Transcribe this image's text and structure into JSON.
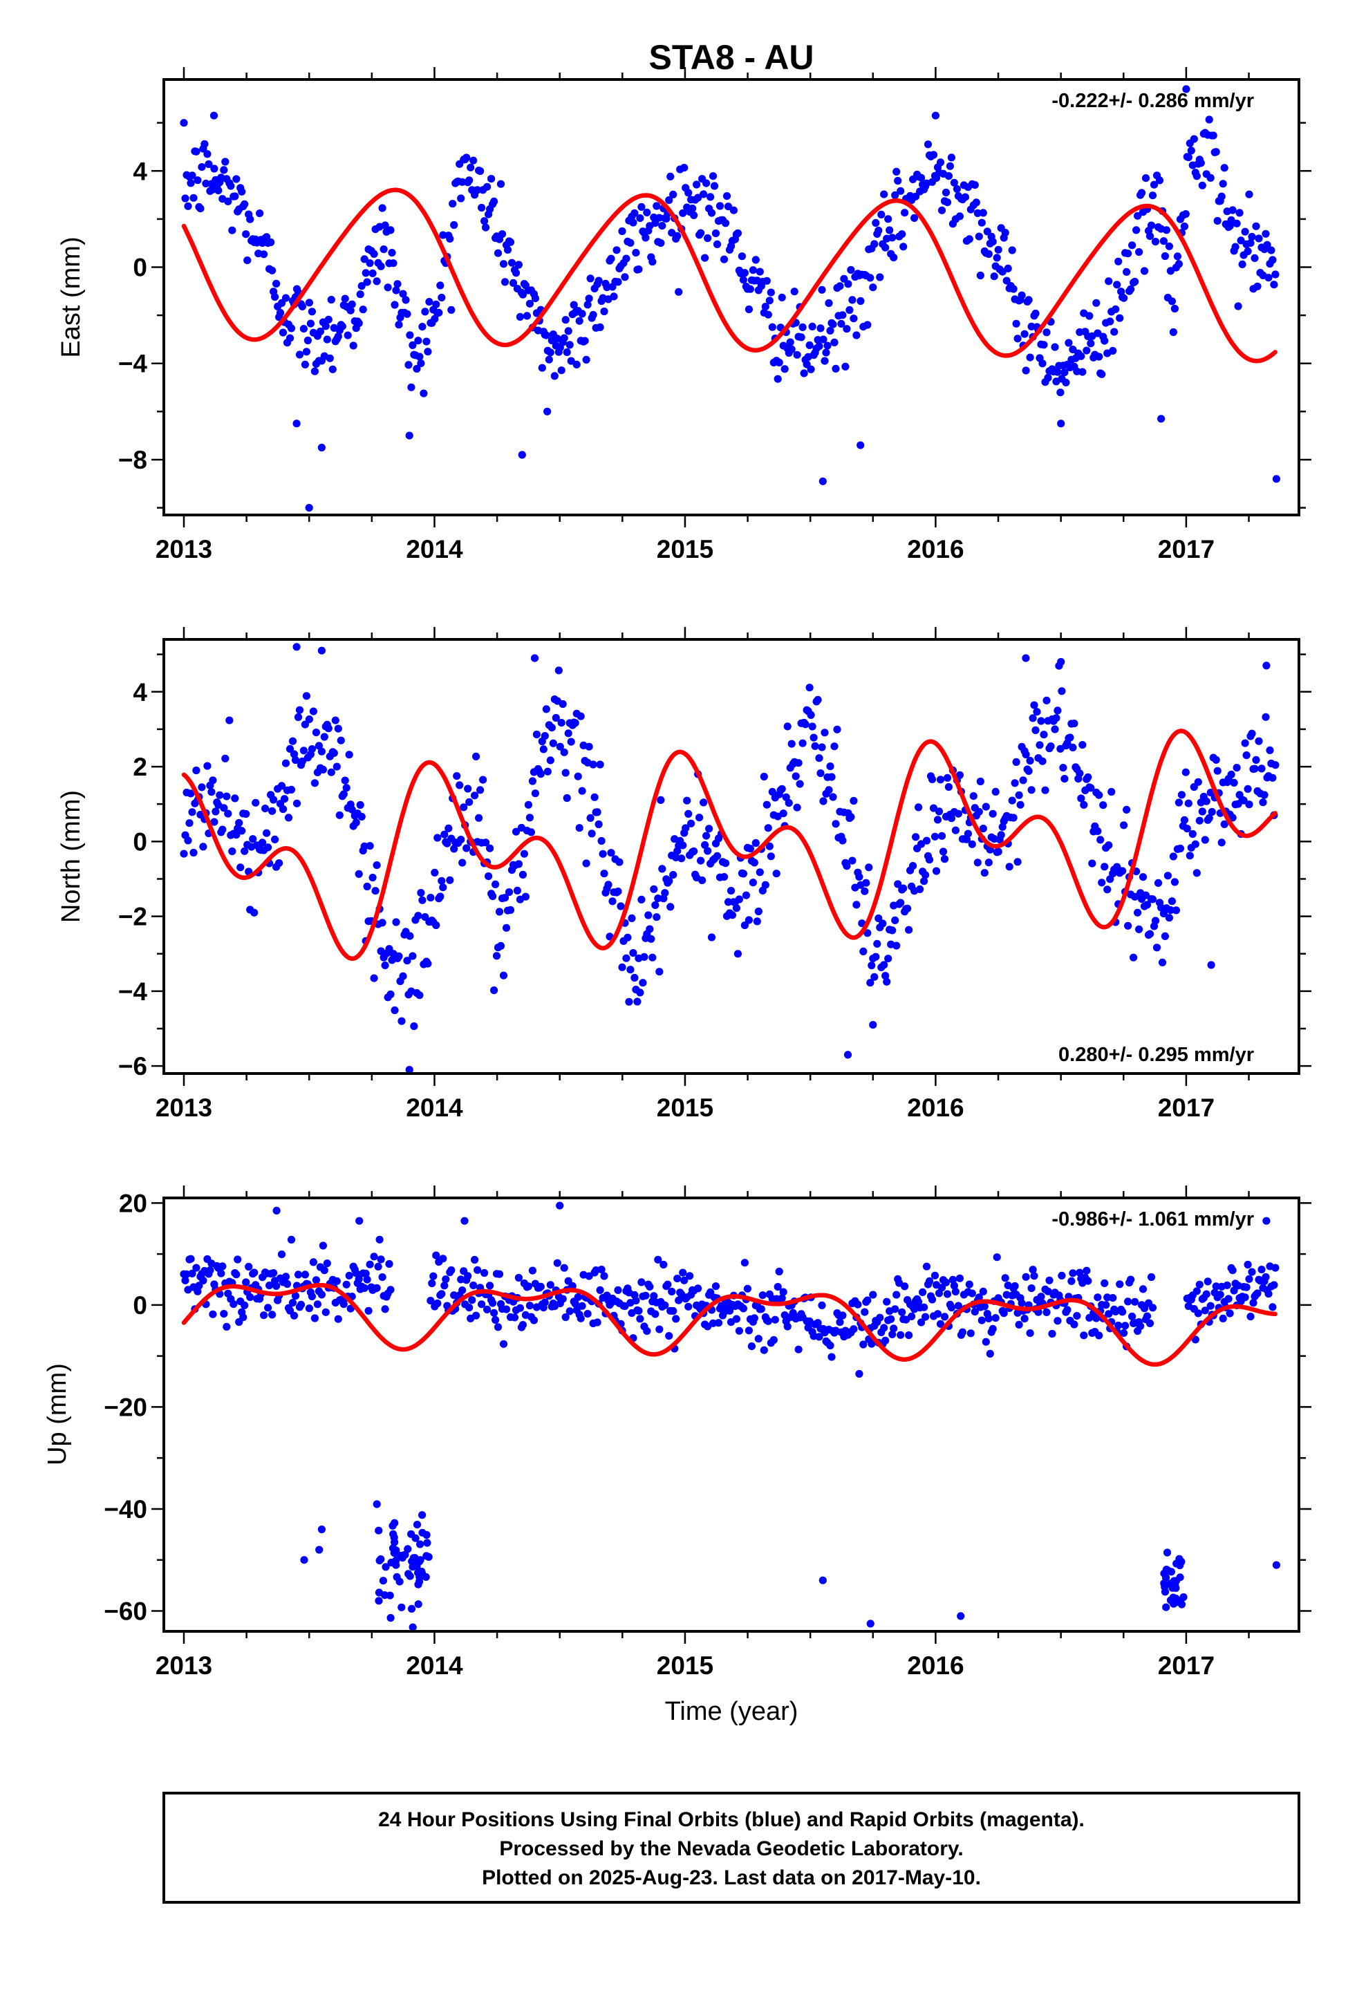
{
  "title": "STA8 - AU",
  "colors": {
    "points": "#0000ff",
    "fit": "#ff0000",
    "frame": "#000000"
  },
  "x_label": "Time (year)",
  "footer": {
    "line1": "24 Hour Positions Using Final Orbits (blue) and Rapid Orbits (magenta).",
    "line2": "Processed by the Nevada Geodetic Laboratory.",
    "line3": "Plotted on 2025-Aug-23. Last data on 2017-May-10."
  },
  "chart_data": [
    {
      "type": "scatter",
      "ylabel": "East (mm)",
      "xlim": [
        2012.92,
        2017.45
      ],
      "ylim": [
        -10.3,
        7.8
      ],
      "x_ticks": [
        2013,
        2014,
        2015,
        2016,
        2017
      ],
      "y_ticks": [
        -8,
        -4,
        0,
        4
      ],
      "grid": false,
      "rate_text": "-0.222+/- 0.286 mm/yr",
      "rate_position": "top-right",
      "points": {
        "x_start": 2013.0,
        "x_end": 2017.36,
        "step": 0.0055,
        "noise": 0.9,
        "anchors": [
          [
            2013.0,
            3.5
          ],
          [
            2013.1,
            3.8
          ],
          [
            2013.2,
            3.0
          ],
          [
            2013.3,
            1.0
          ],
          [
            2013.4,
            -1.5
          ],
          [
            2013.5,
            -3.0
          ],
          [
            2013.6,
            -2.5
          ],
          [
            2013.7,
            -1.5
          ],
          [
            2013.8,
            1.5
          ],
          [
            2013.9,
            -3.5
          ],
          [
            2014.0,
            -2.5
          ],
          [
            2014.1,
            4.0
          ],
          [
            2014.2,
            3.0
          ],
          [
            2014.3,
            0.5
          ],
          [
            2014.4,
            -2.5
          ],
          [
            2014.5,
            -3.5
          ],
          [
            2014.6,
            -2.0
          ],
          [
            2014.7,
            -0.5
          ],
          [
            2014.8,
            1.0
          ],
          [
            2014.9,
            2.0
          ],
          [
            2015.0,
            3.0
          ],
          [
            2015.1,
            2.5
          ],
          [
            2015.2,
            1.0
          ],
          [
            2015.3,
            -1.5
          ],
          [
            2015.4,
            -3.0
          ],
          [
            2015.5,
            -3.5
          ],
          [
            2015.6,
            -2.5
          ],
          [
            2015.7,
            -1.0
          ],
          [
            2015.8,
            1.0
          ],
          [
            2015.9,
            3.0
          ],
          [
            2016.0,
            4.0
          ],
          [
            2016.1,
            3.5
          ],
          [
            2016.2,
            1.5
          ],
          [
            2016.3,
            -1.0
          ],
          [
            2016.4,
            -3.0
          ],
          [
            2016.5,
            -4.0
          ],
          [
            2016.6,
            -3.5
          ],
          [
            2016.7,
            -2.0
          ],
          [
            2016.8,
            1.0
          ],
          [
            2016.9,
            2.5
          ],
          [
            2016.95,
            -2.0
          ],
          [
            2017.0,
            4.0
          ],
          [
            2017.1,
            4.5
          ],
          [
            2017.2,
            1.0
          ],
          [
            2017.3,
            0.5
          ],
          [
            2017.36,
            -0.5
          ]
        ],
        "outliers": [
          [
            2013.5,
            -10.0
          ],
          [
            2013.45,
            -6.5
          ],
          [
            2013.55,
            -7.5
          ],
          [
            2013.9,
            -7.0
          ],
          [
            2014.35,
            -7.8
          ],
          [
            2014.45,
            -6.0
          ],
          [
            2015.55,
            -8.9
          ],
          [
            2015.7,
            -7.4
          ],
          [
            2016.5,
            -6.5
          ],
          [
            2016.9,
            -6.3
          ],
          [
            2017.36,
            -8.8
          ],
          [
            2013.12,
            6.3
          ],
          [
            2017.0,
            7.4
          ],
          [
            2016.0,
            6.3
          ]
        ]
      },
      "fit": {
        "offset": -0.2,
        "rate": -0.222,
        "epoch": 2015.18,
        "harmonics": [
          [
            1.0,
            3.1,
            -0.19
          ],
          [
            2.0,
            0.35,
            0.45
          ]
        ]
      }
    },
    {
      "type": "scatter",
      "ylabel": "North (mm)",
      "xlim": [
        2012.92,
        2017.45
      ],
      "ylim": [
        -6.2,
        5.4
      ],
      "x_ticks": [
        2013,
        2014,
        2015,
        2016,
        2017
      ],
      "y_ticks": [
        -6,
        -4,
        -2,
        0,
        2,
        4
      ],
      "grid": false,
      "rate_text": "0.280+/- 0.295 mm/yr",
      "rate_position": "bottom-right",
      "points": {
        "x_start": 2013.0,
        "x_end": 2017.36,
        "step": 0.0055,
        "noise": 0.75,
        "anchors": [
          [
            2013.0,
            0.8
          ],
          [
            2013.1,
            1.0
          ],
          [
            2013.2,
            0.5
          ],
          [
            2013.3,
            -0.3
          ],
          [
            2013.4,
            1.0
          ],
          [
            2013.5,
            3.0
          ],
          [
            2013.6,
            2.5
          ],
          [
            2013.7,
            0.0
          ],
          [
            2013.8,
            -3.0
          ],
          [
            2013.9,
            -3.8
          ],
          [
            2014.0,
            -1.5
          ],
          [
            2014.1,
            0.8
          ],
          [
            2014.2,
            0.5
          ],
          [
            2014.25,
            -2.5
          ],
          [
            2014.3,
            -2.0
          ],
          [
            2014.4,
            1.0
          ],
          [
            2014.5,
            3.0
          ],
          [
            2014.6,
            2.0
          ],
          [
            2014.7,
            -1.0
          ],
          [
            2014.8,
            -3.5
          ],
          [
            2014.9,
            -2.0
          ],
          [
            2015.0,
            0.5
          ],
          [
            2015.1,
            -0.5
          ],
          [
            2015.2,
            -1.5
          ],
          [
            2015.3,
            -1.0
          ],
          [
            2015.4,
            1.5
          ],
          [
            2015.5,
            3.0
          ],
          [
            2015.6,
            1.5
          ],
          [
            2015.7,
            -1.5
          ],
          [
            2015.8,
            -3.0
          ],
          [
            2015.9,
            -1.0
          ],
          [
            2016.0,
            0.5
          ],
          [
            2016.1,
            0.5
          ],
          [
            2016.2,
            0.0
          ],
          [
            2016.3,
            0.5
          ],
          [
            2016.4,
            2.5
          ],
          [
            2016.5,
            3.0
          ],
          [
            2016.6,
            1.5
          ],
          [
            2016.7,
            -1.0
          ],
          [
            2016.8,
            -1.5
          ],
          [
            2016.9,
            -2.2
          ],
          [
            2017.0,
            0.5
          ],
          [
            2017.1,
            1.0
          ],
          [
            2017.2,
            1.5
          ],
          [
            2017.3,
            2.0
          ],
          [
            2017.36,
            1.5
          ]
        ],
        "outliers": [
          [
            2013.45,
            5.2
          ],
          [
            2013.55,
            5.1
          ],
          [
            2014.4,
            4.9
          ],
          [
            2013.9,
            -6.1
          ],
          [
            2015.65,
            -5.7
          ],
          [
            2015.75,
            -4.9
          ],
          [
            2016.36,
            4.9
          ],
          [
            2016.5,
            4.8
          ],
          [
            2017.32,
            4.7
          ],
          [
            2017.1,
            -3.3
          ]
        ]
      },
      "fit": {
        "offset": -0.1,
        "rate": 0.28,
        "epoch": 2015.18,
        "harmonics": [
          [
            1.0,
            1.6,
            0.08
          ],
          [
            2.0,
            1.35,
            -0.05
          ]
        ]
      }
    },
    {
      "type": "scatter",
      "ylabel": "Up (mm)",
      "xlim": [
        2012.92,
        2017.45
      ],
      "ylim": [
        -64,
        21
      ],
      "x_ticks": [
        2013,
        2014,
        2015,
        2016,
        2017
      ],
      "y_ticks": [
        -60,
        -40,
        -20,
        0,
        20
      ],
      "grid": false,
      "rate_text": "-0.986+/- 1.061 mm/yr",
      "rate_position": "top-right",
      "points": {
        "x_start": 2013.0,
        "x_end": 2017.36,
        "step": 0.0055,
        "noise": 3.2,
        "gaps": [
          [
            2013.83,
            2013.98
          ],
          [
            2016.87,
            2017.0
          ]
        ],
        "anchors": [
          [
            2013.0,
            3.0
          ],
          [
            2013.3,
            3.0
          ],
          [
            2013.6,
            3.5
          ],
          [
            2013.8,
            5.0
          ],
          [
            2014.0,
            5.0
          ],
          [
            2014.2,
            1.5
          ],
          [
            2014.5,
            2.0
          ],
          [
            2014.8,
            0.5
          ],
          [
            2015.0,
            1.0
          ],
          [
            2015.2,
            -1.0
          ],
          [
            2015.5,
            -2.5
          ],
          [
            2015.7,
            -5.0
          ],
          [
            2015.9,
            0.0
          ],
          [
            2016.0,
            2.0
          ],
          [
            2016.2,
            0.0
          ],
          [
            2016.4,
            2.0
          ],
          [
            2016.6,
            0.0
          ],
          [
            2016.8,
            -2.0
          ],
          [
            2017.0,
            -2.0
          ],
          [
            2017.2,
            2.0
          ],
          [
            2017.36,
            3.0
          ]
        ],
        "clusters": [
          [
            2013.76,
            2013.98,
            -50,
            4.5,
            60
          ],
          [
            2016.91,
            2016.99,
            -55,
            2.6,
            30
          ]
        ],
        "outliers": [
          [
            2013.48,
            -50
          ],
          [
            2013.54,
            -48
          ],
          [
            2013.55,
            -44
          ],
          [
            2015.55,
            -54
          ],
          [
            2015.74,
            -62.5
          ],
          [
            2016.1,
            -61
          ],
          [
            2017.36,
            -51
          ],
          [
            2013.37,
            18.5
          ],
          [
            2014.5,
            19.5
          ],
          [
            2013.7,
            16.5
          ],
          [
            2017.32,
            16.5
          ],
          [
            2014.12,
            16.5
          ]
        ]
      },
      "fit": {
        "offset": -2.0,
        "rate": -0.986,
        "epoch": 2015.18,
        "harmonics": [
          [
            1.0,
            5.2,
            0.38
          ],
          [
            2.0,
            2.8,
            0.12
          ]
        ]
      }
    }
  ]
}
